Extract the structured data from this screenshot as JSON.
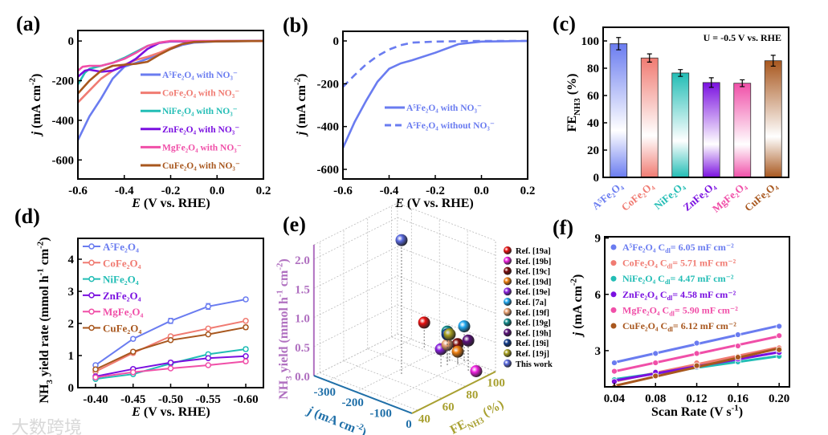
{
  "figure": {
    "watermark": "大数跨境"
  },
  "colors": {
    "A5Fe2O4": "#6A7CF0",
    "CoFe2O4": "#F07B72",
    "NiFe2O4": "#22BDB5",
    "ZnFe2O4": "#7A10E0",
    "MgFe2O4": "#F04FA8",
    "CuFe2O4": "#A8571E"
  },
  "chart_data": [
    {
      "panel": "(a)",
      "type": "line",
      "xlabel": [
        {
          "t": "E",
          "s": "i"
        },
        {
          "t": " (V vs. RHE)"
        }
      ],
      "ylabel": [
        {
          "t": "j",
          "s": "i"
        },
        {
          "t": " (mA cm"
        },
        {
          "t": "-2",
          "s": "sup"
        },
        {
          "t": ")"
        }
      ],
      "xlim": [
        -0.6,
        0.2
      ],
      "ylim": [
        -696,
        53
      ],
      "xticks": [
        -0.6,
        -0.4,
        -0.2,
        0,
        0.2
      ],
      "xticklabels": [
        "-0.6",
        "-0.4",
        "-0.2",
        "0.0",
        "0.2"
      ],
      "yticks": [
        0,
        -200,
        -400,
        -600
      ],
      "yticklabels": [
        "0",
        "-200",
        "-400",
        "-600"
      ],
      "legend": "right",
      "series": [
        {
          "name": "A⁵Fe₂O₄ with NO₃⁻",
          "color": "#6A7CF0",
          "points": [
            [
              -0.6,
              -500
            ],
            [
              -0.55,
              -380
            ],
            [
              -0.5,
              -290
            ],
            [
              -0.45,
              -190
            ],
            [
              -0.4,
              -130
            ],
            [
              -0.35,
              -110
            ],
            [
              -0.3,
              -90
            ],
            [
              -0.25,
              -65
            ],
            [
              -0.2,
              -40
            ],
            [
              -0.15,
              -20
            ],
            [
              -0.1,
              -8
            ],
            [
              0,
              -2
            ],
            [
              0.2,
              0
            ]
          ]
        },
        {
          "name": "CoFe₂O₄ with NO₃⁻",
          "color": "#F07B72",
          "points": [
            [
              -0.6,
              -310
            ],
            [
              -0.55,
              -250
            ],
            [
              -0.5,
              -190
            ],
            [
              -0.45,
              -150
            ],
            [
              -0.4,
              -120
            ],
            [
              -0.35,
              -95
            ],
            [
              -0.3,
              -80
            ],
            [
              -0.25,
              -60
            ],
            [
              -0.2,
              -35
            ],
            [
              -0.15,
              -15
            ],
            [
              -0.1,
              -5
            ],
            [
              0,
              0
            ],
            [
              0.2,
              0
            ]
          ]
        },
        {
          "name": "NiFe₂O₄ with NO₃⁻",
          "color": "#22BDB5",
          "points": [
            [
              -0.6,
              -220
            ],
            [
              -0.57,
              -160
            ],
            [
              -0.55,
              -140
            ],
            [
              -0.5,
              -125
            ],
            [
              -0.45,
              -110
            ],
            [
              -0.4,
              -85
            ],
            [
              -0.35,
              -55
            ],
            [
              -0.3,
              -25
            ],
            [
              -0.25,
              -8
            ],
            [
              -0.2,
              -2
            ],
            [
              0.2,
              0
            ]
          ]
        },
        {
          "name": "ZnFe₂O₄ with NO₃⁻",
          "color": "#7A10E0",
          "points": [
            [
              -0.6,
              -180
            ],
            [
              -0.57,
              -150
            ],
            [
              -0.55,
              -145
            ],
            [
              -0.5,
              -155
            ],
            [
              -0.45,
              -150
            ],
            [
              -0.4,
              -125
            ],
            [
              -0.35,
              -90
            ],
            [
              -0.3,
              -40
            ],
            [
              -0.25,
              -10
            ],
            [
              -0.2,
              -2
            ],
            [
              0.2,
              0
            ]
          ]
        },
        {
          "name": "MgFe₂O₄ with NO₃⁻",
          "color": "#F04FA8",
          "points": [
            [
              -0.6,
              -150
            ],
            [
              -0.58,
              -130
            ],
            [
              -0.55,
              -125
            ],
            [
              -0.5,
              -125
            ],
            [
              -0.45,
              -110
            ],
            [
              -0.4,
              -90
            ],
            [
              -0.35,
              -60
            ],
            [
              -0.3,
              -25
            ],
            [
              -0.25,
              -8
            ],
            [
              -0.2,
              0
            ],
            [
              0.2,
              0
            ]
          ]
        },
        {
          "name": "CuFe₂O₄ with NO₃⁻",
          "color": "#A8571E",
          "points": [
            [
              -0.6,
              -265
            ],
            [
              -0.55,
              -200
            ],
            [
              -0.5,
              -150
            ],
            [
              -0.45,
              -125
            ],
            [
              -0.4,
              -120
            ],
            [
              -0.35,
              -115
            ],
            [
              -0.3,
              -105
            ],
            [
              -0.25,
              -70
            ],
            [
              -0.2,
              -40
            ],
            [
              -0.15,
              -15
            ],
            [
              -0.1,
              -5
            ],
            [
              0,
              -2
            ],
            [
              0.2,
              0
            ]
          ]
        }
      ]
    },
    {
      "panel": "(b)",
      "type": "line",
      "xlabel": [
        {
          "t": "E",
          "s": "i"
        },
        {
          "t": " (V vs. RHE)"
        }
      ],
      "ylabel": [
        {
          "t": "j",
          "s": "i"
        },
        {
          "t": " (mA cm"
        },
        {
          "t": "-2",
          "s": "sup"
        },
        {
          "t": ")"
        }
      ],
      "xlim": [
        -0.6,
        0.2
      ],
      "ylim": [
        -645,
        45
      ],
      "xticks": [
        -0.6,
        -0.4,
        -0.2,
        0,
        0.2
      ],
      "xticklabels": [
        "-0.6",
        "-0.4",
        "-0.2",
        "0.0",
        "0.2"
      ],
      "yticks": [
        0,
        -200,
        -400,
        -600
      ],
      "yticklabels": [
        "0",
        "-200",
        "-400",
        "-600"
      ],
      "legend": "center-right",
      "series": [
        {
          "name": "A⁵Fe₂O₄ with NO₃⁻",
          "color": "#6A7CF0",
          "dash": false,
          "points": [
            [
              -0.6,
              -500
            ],
            [
              -0.55,
              -380
            ],
            [
              -0.5,
              -280
            ],
            [
              -0.45,
              -190
            ],
            [
              -0.4,
              -130
            ],
            [
              -0.35,
              -105
            ],
            [
              -0.3,
              -90
            ],
            [
              -0.2,
              -55
            ],
            [
              -0.1,
              -15
            ],
            [
              0,
              -3
            ],
            [
              0.2,
              0
            ]
          ]
        },
        {
          "name": "A⁵Fe₂O₄ without NO₃⁻",
          "color": "#6A7CF0",
          "dash": true,
          "points": [
            [
              -0.6,
              -215
            ],
            [
              -0.55,
              -160
            ],
            [
              -0.5,
              -110
            ],
            [
              -0.45,
              -70
            ],
            [
              -0.4,
              -40
            ],
            [
              -0.35,
              -20
            ],
            [
              -0.3,
              -8
            ],
            [
              -0.2,
              -3
            ],
            [
              0,
              0
            ],
            [
              0.2,
              0
            ]
          ]
        }
      ]
    },
    {
      "panel": "(c)",
      "type": "bar",
      "annotation": "U = -0.5 V vs. RHE",
      "ylabel": [
        {
          "t": "FE"
        },
        {
          "t": "NH3",
          "s": "sub"
        },
        {
          "t": " (%)"
        }
      ],
      "ylim": [
        0,
        110
      ],
      "yticks": [
        0,
        20,
        40,
        60,
        80,
        100
      ],
      "yticklabels": [
        "0",
        "20",
        "40",
        "60",
        "80",
        "100"
      ],
      "categories": [
        "A⁵Fe₂O₄",
        "CoFe₂O₄",
        "NiFe₂O₄",
        "ZnFe₂O₄",
        "MgFe₂O₄",
        "CuFe₂O₄"
      ],
      "values": [
        98,
        87.5,
        76.5,
        69.5,
        69,
        85.5
      ],
      "errors": [
        4.5,
        3,
        2.5,
        3.5,
        2.5,
        4
      ],
      "bar_colors": [
        "#6A7CF0",
        "#F07B72",
        "#22BDB5",
        "#7A10E0",
        "#F04FA8",
        "#A8571E"
      ]
    },
    {
      "panel": "(d)",
      "type": "line",
      "xlabel": [
        {
          "t": "E",
          "s": "i"
        },
        {
          "t": " (V vs. RHE)"
        }
      ],
      "ylabel": [
        {
          "t": "NH"
        },
        {
          "t": "3",
          "s": "sub"
        },
        {
          "t": " yield rate (mmol h"
        },
        {
          "t": "-1",
          "s": "sup"
        },
        {
          "t": " cm"
        },
        {
          "t": "-2",
          "s": "sup"
        },
        {
          "t": ")"
        }
      ],
      "xlim": [
        -0.3765,
        -0.6235
      ],
      "ylim": [
        0,
        4.65
      ],
      "xticks": [
        -0.4,
        -0.45,
        -0.5,
        -0.55,
        -0.6
      ],
      "xticklabels": [
        "-0.40",
        "-0.45",
        "-0.50",
        "-0.55",
        "-0.60"
      ],
      "yticks": [
        0,
        1,
        2,
        3,
        4
      ],
      "yticklabels": [
        "0",
        "1",
        "2",
        "3",
        "4"
      ],
      "legend": "top-left",
      "series": [
        {
          "name": "A⁵Fe₂O₄",
          "color": "#6A7CF0",
          "y": [
            0.7,
            1.52,
            2.08,
            2.53,
            2.75
          ],
          "err": [
            0.05,
            0.05,
            0.08,
            0.09,
            0.05
          ]
        },
        {
          "name": "CoFe₂O₄",
          "color": "#F07B72",
          "y": [
            0.5,
            1.08,
            1.6,
            1.84,
            2.08
          ],
          "err": [
            0.04,
            0.05,
            0.05,
            0.05,
            0.05
          ]
        },
        {
          "name": "NiFe₂O₄",
          "color": "#22BDB5",
          "y": [
            0.27,
            0.42,
            0.75,
            1.04,
            1.2
          ],
          "err": [
            0.03,
            0.04,
            0.05,
            0.05,
            0.06
          ]
        },
        {
          "name": "ZnFe₂O₄",
          "color": "#7A10E0",
          "y": [
            0.35,
            0.58,
            0.78,
            0.92,
            0.98
          ],
          "err": [
            0.04,
            0.05,
            0.06,
            0.04,
            0.04
          ]
        },
        {
          "name": "MgFe₂O₄",
          "color": "#F04FA8",
          "y": [
            0.32,
            0.48,
            0.6,
            0.7,
            0.82
          ],
          "err": [
            0.03,
            0.03,
            0.04,
            0.04,
            0.05
          ]
        },
        {
          "name": "CuFe₂O₄",
          "color": "#A8571E",
          "y": [
            0.57,
            1.12,
            1.48,
            1.66,
            1.88
          ],
          "err": [
            0.04,
            0.05,
            0.05,
            0.05,
            0.06
          ]
        }
      ]
    },
    {
      "panel": "(e)",
      "type": "scatter3d",
      "xlabel": [
        {
          "t": "j",
          "s": "i"
        },
        {
          "t": " (mA cm"
        },
        {
          "t": "-2",
          "s": "sup"
        },
        {
          "t": ")"
        }
      ],
      "ylabel": [
        {
          "t": "FE"
        },
        {
          "t": "NH3",
          "s": "sub"
        },
        {
          "t": " (%)"
        }
      ],
      "zlabel": [
        {
          "t": "NH"
        },
        {
          "t": "3",
          "s": "sub"
        },
        {
          "t": " yield (mmol h"
        },
        {
          "t": "-1",
          "s": "sup"
        },
        {
          "t": " cm"
        },
        {
          "t": "-2",
          "s": "sup"
        },
        {
          "t": ")"
        }
      ],
      "xlim": [
        -350,
        0
      ],
      "ylim": [
        35,
        105
      ],
      "zlim": [
        0,
        2.25
      ],
      "xticks": [
        -300,
        -200,
        -100,
        0
      ],
      "xticklabels": [
        "-300",
        "-200",
        "-100",
        "0"
      ],
      "yticks": [
        40,
        60,
        80,
        100
      ],
      "yticklabels": [
        "40",
        "60",
        "80",
        "100"
      ],
      "zticks": [
        0,
        0.5,
        1,
        1.5,
        2
      ],
      "zticklabels": [
        "0.0",
        "0.5",
        "1.0",
        "1.5",
        "2.0"
      ],
      "axis_colors": {
        "j": "#1F6FA8",
        "fe": "#A8A030",
        "yield": "#B070C0"
      },
      "legend": "right",
      "points": [
        {
          "name": "Ref. [19a]",
          "color": "#E81010",
          "j": -241,
          "fe": 101.8,
          "yield": 0.43
        },
        {
          "name": "Ref. [19b]",
          "color": "#F020E0",
          "j": -29,
          "fe": 95.6,
          "yield": 0.05
        },
        {
          "name": "Ref. [19c]",
          "color": "#7A0A0A",
          "j": -112,
          "fe": 99.6,
          "yield": 0.32
        },
        {
          "name": "Ref. [19d]",
          "color": "#F08010",
          "j": -105,
          "fe": 98,
          "yield": 0.22
        },
        {
          "name": "Ref. [19e]",
          "color": "#8A20E0",
          "j": -130,
          "fe": 89.8,
          "yield": 0.3
        },
        {
          "name": "Ref. [7a]",
          "color": "#20A8F0",
          "j": -105,
          "fe": 103.4,
          "yield": 0.6
        },
        {
          "name": "Ref. [19f]",
          "color": "#E8A070",
          "j": -123,
          "fe": 93.5,
          "yield": 0.35
        },
        {
          "name": "Ref. [19g]",
          "color": "#108A8A",
          "j": -139,
          "fe": 97.3,
          "yield": 0.51
        },
        {
          "name": "Ref. [19h]",
          "color": "#5A107A",
          "j": -58,
          "fe": 95.8,
          "yield": 0.52
        },
        {
          "name": "Ref. [19i]",
          "color": "#103A8A",
          "j": -139,
          "fe": 97.3,
          "yield": 0.46
        },
        {
          "name": "Ref. [19j]",
          "color": "#A8A020",
          "j": -135,
          "fe": 98.3,
          "yield": 0.46
        },
        {
          "name": "This work",
          "color": "#5A6AE0",
          "j": -180,
          "fe": 68.5,
          "yield": 2.3
        }
      ]
    },
    {
      "panel": "(f)",
      "type": "scatter",
      "xlabel": [
        {
          "t": "Scan Rate (V s"
        },
        {
          "t": "-1",
          "s": "sup"
        },
        {
          "t": ")"
        }
      ],
      "ylabel": [
        {
          "t": "j",
          "s": "i"
        },
        {
          "t": " (mA cm"
        },
        {
          "t": "-2",
          "s": "sup"
        },
        {
          "t": ")"
        }
      ],
      "xlim": [
        0.0307,
        0.21
      ],
      "ylim": [
        1.07,
        9.07
      ],
      "xticks": [
        0.04,
        0.08,
        0.12,
        0.16,
        0.2
      ],
      "xticklabels": [
        "0.04",
        "0.08",
        "0.12",
        "0.16",
        "0.20"
      ],
      "yticks": [
        3,
        6,
        9
      ],
      "yticklabels": [
        "3",
        "6",
        "9"
      ],
      "legend": "top-left",
      "x": [
        0.04,
        0.08,
        0.12,
        0.16,
        0.2
      ],
      "series": [
        {
          "name": "A⁵Fe₂O₄ C",
          "sub": "dl",
          "value": "= 6.05 mF cm⁻²",
          "color": "#6A7CF0",
          "y": [
            2.35,
            2.85,
            3.4,
            3.85,
            4.3
          ]
        },
        {
          "name": "CoFe₂O₄ C",
          "sub": "dl",
          "value": "= 5.71 mF cm⁻²",
          "color": "#F07B72",
          "y": [
            1.3,
            1.85,
            2.35,
            2.7,
            3.15
          ]
        },
        {
          "name": "NiFe₂O₄ C",
          "sub": "dl",
          "value": "= 4.47 mF cm⁻²",
          "color": "#22BDB5",
          "y": [
            1.45,
            1.8,
            2.1,
            2.4,
            2.7
          ]
        },
        {
          "name": "ZnFe₂O₄ C",
          "sub": "dl",
          "value": "= 4.58 mF cm⁻²",
          "color": "#7A10E0",
          "y": [
            1.35,
            1.85,
            2.15,
            2.55,
            2.9
          ]
        },
        {
          "name": "MgFe₂O₄ C",
          "sub": "dl",
          "value": "= 5.90 mF cm⁻²",
          "color": "#F04FA8",
          "y": [
            1.9,
            2.35,
            2.85,
            3.25,
            3.8
          ]
        },
        {
          "name": "CuFe₂O₄ C",
          "sub": "dl",
          "value": "= 6.12 mF cm⁻²",
          "color": "#A8571E",
          "y": [
            1.05,
            1.65,
            2.2,
            2.65,
            3.05
          ]
        }
      ]
    }
  ]
}
